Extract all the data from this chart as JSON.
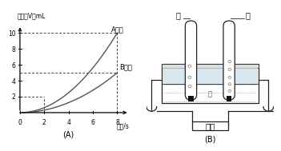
{
  "title_A": "(A)",
  "title_B": "(B)",
  "ylabel_A": "体积（V）mL",
  "xlabel_A": "时间/s",
  "label_A_gas": "A气体",
  "label_B_gas": "B气体",
  "xlim": [
    0,
    9
  ],
  "ylim": [
    0,
    11
  ],
  "xticks": [
    0,
    2,
    4,
    6,
    8
  ],
  "yticks": [
    2,
    4,
    6,
    8,
    10
  ],
  "background": "#ffffff",
  "line_color": "#555555",
  "dashed_color": "#444444"
}
